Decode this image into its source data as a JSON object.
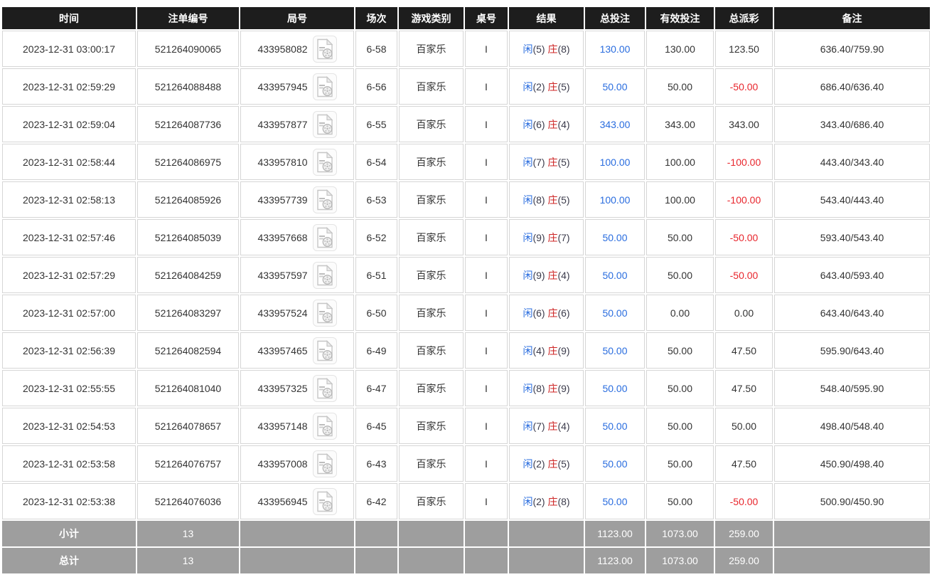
{
  "colors": {
    "header_bg": "#1d1d1d",
    "footer_bg": "#9e9e9e",
    "link_blue": "#2a6ddf",
    "loss_red": "#e8262d",
    "player_blue": "#2a6ddf",
    "banker_red": "#cc2222"
  },
  "icons": {
    "round_cell_icon": "video-file-icon"
  },
  "table": {
    "columns": [
      {
        "key": "time",
        "label": "时间"
      },
      {
        "key": "bet_id",
        "label": "注单编号"
      },
      {
        "key": "round_id",
        "label": "局号"
      },
      {
        "key": "session",
        "label": "场次"
      },
      {
        "key": "game_type",
        "label": "游戏类别"
      },
      {
        "key": "table_no",
        "label": "桌号"
      },
      {
        "key": "result",
        "label": "结果"
      },
      {
        "key": "total_bet",
        "label": "总投注"
      },
      {
        "key": "valid_bet",
        "label": "有效投注"
      },
      {
        "key": "payout",
        "label": "总派彩"
      },
      {
        "key": "remark",
        "label": "备注"
      }
    ],
    "result_labels": {
      "player": "闲",
      "banker": "庄"
    },
    "rows": [
      {
        "time": "2023-12-31 03:00:17",
        "bet_id": "521264090065",
        "round_id": "433958082",
        "session": "6-58",
        "game_type": "百家乐",
        "table_no": "I",
        "result": {
          "player": "5",
          "banker": "8"
        },
        "total_bet": "130.00",
        "valid_bet": "130.00",
        "payout": "123.50",
        "remark": "636.40/759.90"
      },
      {
        "time": "2023-12-31 02:59:29",
        "bet_id": "521264088488",
        "round_id": "433957945",
        "session": "6-56",
        "game_type": "百家乐",
        "table_no": "I",
        "result": {
          "player": "2",
          "banker": "5"
        },
        "total_bet": "50.00",
        "valid_bet": "50.00",
        "payout": "-50.00",
        "remark": "686.40/636.40"
      },
      {
        "time": "2023-12-31 02:59:04",
        "bet_id": "521264087736",
        "round_id": "433957877",
        "session": "6-55",
        "game_type": "百家乐",
        "table_no": "I",
        "result": {
          "player": "6",
          "banker": "4"
        },
        "total_bet": "343.00",
        "valid_bet": "343.00",
        "payout": "343.00",
        "remark": "343.40/686.40"
      },
      {
        "time": "2023-12-31 02:58:44",
        "bet_id": "521264086975",
        "round_id": "433957810",
        "session": "6-54",
        "game_type": "百家乐",
        "table_no": "I",
        "result": {
          "player": "7",
          "banker": "5"
        },
        "total_bet": "100.00",
        "valid_bet": "100.00",
        "payout": "-100.00",
        "remark": "443.40/343.40"
      },
      {
        "time": "2023-12-31 02:58:13",
        "bet_id": "521264085926",
        "round_id": "433957739",
        "session": "6-53",
        "game_type": "百家乐",
        "table_no": "I",
        "result": {
          "player": "8",
          "banker": "5"
        },
        "total_bet": "100.00",
        "valid_bet": "100.00",
        "payout": "-100.00",
        "remark": "543.40/443.40"
      },
      {
        "time": "2023-12-31 02:57:46",
        "bet_id": "521264085039",
        "round_id": "433957668",
        "session": "6-52",
        "game_type": "百家乐",
        "table_no": "I",
        "result": {
          "player": "9",
          "banker": "7"
        },
        "total_bet": "50.00",
        "valid_bet": "50.00",
        "payout": "-50.00",
        "remark": "593.40/543.40"
      },
      {
        "time": "2023-12-31 02:57:29",
        "bet_id": "521264084259",
        "round_id": "433957597",
        "session": "6-51",
        "game_type": "百家乐",
        "table_no": "I",
        "result": {
          "player": "9",
          "banker": "4"
        },
        "total_bet": "50.00",
        "valid_bet": "50.00",
        "payout": "-50.00",
        "remark": "643.40/593.40"
      },
      {
        "time": "2023-12-31 02:57:00",
        "bet_id": "521264083297",
        "round_id": "433957524",
        "session": "6-50",
        "game_type": "百家乐",
        "table_no": "I",
        "result": {
          "player": "6",
          "banker": "6"
        },
        "total_bet": "50.00",
        "valid_bet": "0.00",
        "payout": "0.00",
        "remark": "643.40/643.40"
      },
      {
        "time": "2023-12-31 02:56:39",
        "bet_id": "521264082594",
        "round_id": "433957465",
        "session": "6-49",
        "game_type": "百家乐",
        "table_no": "I",
        "result": {
          "player": "4",
          "banker": "9"
        },
        "total_bet": "50.00",
        "valid_bet": "50.00",
        "payout": "47.50",
        "remark": "595.90/643.40"
      },
      {
        "time": "2023-12-31 02:55:55",
        "bet_id": "521264081040",
        "round_id": "433957325",
        "session": "6-47",
        "game_type": "百家乐",
        "table_no": "I",
        "result": {
          "player": "8",
          "banker": "9"
        },
        "total_bet": "50.00",
        "valid_bet": "50.00",
        "payout": "47.50",
        "remark": "548.40/595.90"
      },
      {
        "time": "2023-12-31 02:54:53",
        "bet_id": "521264078657",
        "round_id": "433957148",
        "session": "6-45",
        "game_type": "百家乐",
        "table_no": "I",
        "result": {
          "player": "7",
          "banker": "4"
        },
        "total_bet": "50.00",
        "valid_bet": "50.00",
        "payout": "50.00",
        "remark": "498.40/548.40"
      },
      {
        "time": "2023-12-31 02:53:58",
        "bet_id": "521264076757",
        "round_id": "433957008",
        "session": "6-43",
        "game_type": "百家乐",
        "table_no": "I",
        "result": {
          "player": "2",
          "banker": "5"
        },
        "total_bet": "50.00",
        "valid_bet": "50.00",
        "payout": "47.50",
        "remark": "450.90/498.40"
      },
      {
        "time": "2023-12-31 02:53:38",
        "bet_id": "521264076036",
        "round_id": "433956945",
        "session": "6-42",
        "game_type": "百家乐",
        "table_no": "I",
        "result": {
          "player": "2",
          "banker": "8"
        },
        "total_bet": "50.00",
        "valid_bet": "50.00",
        "payout": "-50.00",
        "remark": "500.90/450.90"
      }
    ],
    "footer": [
      {
        "label": "小计",
        "count": "13",
        "total_bet": "1123.00",
        "valid_bet": "1073.00",
        "payout": "259.00"
      },
      {
        "label": "总计",
        "count": "13",
        "total_bet": "1123.00",
        "valid_bet": "1073.00",
        "payout": "259.00"
      }
    ]
  }
}
